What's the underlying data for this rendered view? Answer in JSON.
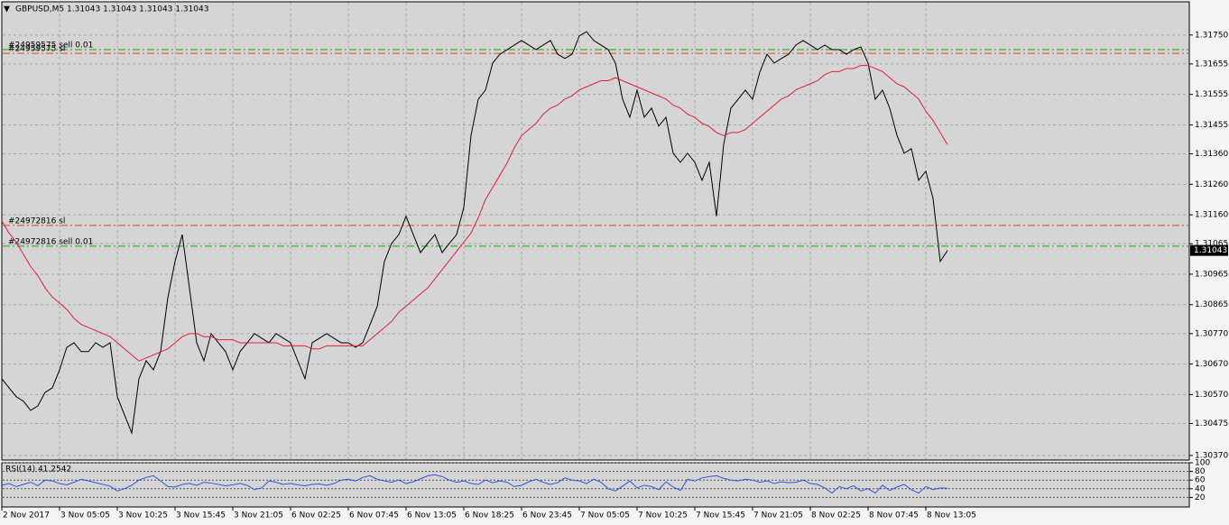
{
  "chart_data": [
    {
      "type": "line",
      "title": "GBPUSD,M5  1.31043 1.31043 1.31043 1.31043",
      "categories": [
        "2 Nov 2017",
        null,
        null,
        null,
        null,
        null,
        null,
        null,
        "3 Nov 05:05",
        null,
        null,
        null,
        null,
        null,
        null,
        null,
        "3 Nov 10:25",
        null,
        null,
        null,
        null,
        null,
        null,
        null,
        "3 Nov 15:45",
        null,
        null,
        null,
        null,
        null,
        null,
        null,
        "3 Nov 21:05",
        null,
        null,
        null,
        null,
        null,
        null,
        null,
        "6 Nov 02:25",
        null,
        null,
        null,
        null,
        null,
        null,
        null,
        "6 Nov 07:45",
        null,
        null,
        null,
        null,
        null,
        null,
        null,
        "6 Nov 13:05",
        null,
        null,
        null,
        null,
        null,
        null,
        null,
        "6 Nov 18:25",
        null,
        null,
        null,
        null,
        null,
        null,
        null,
        "6 Nov 23:45",
        null,
        null,
        null,
        null,
        null,
        null,
        null,
        "7 Nov 05:05",
        null,
        null,
        null,
        null,
        null,
        null,
        null,
        "7 Nov 10:25",
        null,
        null,
        null,
        null,
        null,
        null,
        null,
        "7 Nov 15:45",
        null,
        null,
        null,
        null,
        null,
        null,
        null,
        "7 Nov 21:05",
        null,
        null,
        null,
        null,
        null,
        null,
        null,
        "8 Nov 02:25",
        null,
        null,
        null,
        null,
        null,
        null,
        null,
        "8 Nov 07:45",
        null,
        null,
        null,
        null,
        null,
        null,
        null,
        "8 Nov 13:05",
        null,
        null,
        null
      ],
      "series": [
        {
          "color": "#000000",
          "values": [
            1.30622,
            1.30592,
            1.30563,
            1.30548,
            1.30518,
            1.30533,
            1.30577,
            1.30592,
            1.30651,
            1.30725,
            1.3074,
            1.30711,
            1.30711,
            1.3074,
            1.30725,
            1.3074,
            1.30563,
            1.30503,
            1.30444,
            1.30622,
            1.30681,
            1.30651,
            1.30711,
            1.30888,
            1.31007,
            1.31095,
            1.30918,
            1.3074,
            1.30681,
            1.3077,
            1.3074,
            1.30711,
            1.30651,
            1.30711,
            1.3074,
            1.3077,
            1.30755,
            1.3074,
            1.3077,
            1.30755,
            1.3074,
            1.30681,
            1.30622,
            1.3074,
            1.30755,
            1.3077,
            1.30755,
            1.3074,
            1.3074,
            1.30725,
            1.3074,
            1.30799,
            1.30859,
            1.31007,
            1.31066,
            1.31095,
            1.31155,
            1.31095,
            1.31036,
            1.31066,
            1.31095,
            1.31036,
            1.31066,
            1.31095,
            1.31184,
            1.31421,
            1.31539,
            1.31569,
            1.31658,
            1.31687,
            1.31702,
            1.31717,
            1.31732,
            1.31717,
            1.31702,
            1.31717,
            1.31732,
            1.31687,
            1.31673,
            1.31687,
            1.31747,
            1.31761,
            1.31732,
            1.31717,
            1.31702,
            1.31658,
            1.31539,
            1.3148,
            1.31569,
            1.3148,
            1.3151,
            1.31451,
            1.3148,
            1.31362,
            1.31332,
            1.31362,
            1.31332,
            1.31273,
            1.31332,
            1.31155,
            1.31391,
            1.3151,
            1.31539,
            1.31569,
            1.31539,
            1.31628,
            1.31687,
            1.31658,
            1.31673,
            1.31687,
            1.31717,
            1.31732,
            1.31717,
            1.31702,
            1.31717,
            1.31702,
            1.31702,
            1.31687,
            1.31702,
            1.31711,
            1.31658,
            1.31539,
            1.31569,
            1.3151,
            1.31421,
            1.31362,
            1.31377,
            1.31273,
            1.31303,
            1.31214,
            1.31007,
            1.31043
          ]
        },
        {
          "color": "#e0203a",
          "values": [
            1.3114,
            1.311,
            1.3107,
            1.3103,
            1.3099,
            1.3096,
            1.3092,
            1.3089,
            1.3087,
            1.3085,
            1.3082,
            1.308,
            1.3079,
            1.3078,
            1.3077,
            1.3076,
            1.3074,
            1.3072,
            1.307,
            1.3068,
            1.3069,
            1.307,
            1.3071,
            1.3072,
            1.3074,
            1.3076,
            1.3077,
            1.3077,
            1.3076,
            1.3076,
            1.3075,
            1.3075,
            1.3075,
            1.3074,
            1.3074,
            1.3074,
            1.3074,
            1.3074,
            1.3074,
            1.3073,
            1.3073,
            1.3073,
            1.3073,
            1.3072,
            1.3072,
            1.3073,
            1.3073,
            1.3073,
            1.3073,
            1.3073,
            1.3073,
            1.3075,
            1.3077,
            1.3079,
            1.3081,
            1.3084,
            1.3086,
            1.3088,
            1.309,
            1.3092,
            1.3095,
            1.3098,
            1.3101,
            1.3104,
            1.3107,
            1.311,
            1.3115,
            1.3121,
            1.3125,
            1.3129,
            1.3133,
            1.3138,
            1.3142,
            1.3144,
            1.3146,
            1.3149,
            1.3151,
            1.3152,
            1.3154,
            1.3155,
            1.3157,
            1.3158,
            1.3159,
            1.316,
            1.316,
            1.3161,
            1.316,
            1.3159,
            1.3158,
            1.3157,
            1.3156,
            1.3155,
            1.3154,
            1.3152,
            1.3151,
            1.3149,
            1.3148,
            1.3146,
            1.3145,
            1.3143,
            1.3142,
            1.3143,
            1.3143,
            1.3144,
            1.3146,
            1.3148,
            1.315,
            1.3152,
            1.3154,
            1.3155,
            1.3157,
            1.3158,
            1.3159,
            1.316,
            1.3162,
            1.3163,
            1.3163,
            1.3164,
            1.3164,
            1.3165,
            1.3165,
            1.3164,
            1.3163,
            1.3161,
            1.3159,
            1.3158,
            1.3156,
            1.3154,
            1.315,
            1.3147,
            1.3143,
            1.3139
          ]
        }
      ],
      "ylim": [
        1.30355,
        1.31859
      ],
      "yticks": [
        {
          "value": 1.3175,
          "label": "1.31750"
        },
        {
          "value": 1.31655,
          "label": "1.31655"
        },
        {
          "value": 1.31555,
          "label": "1.31555"
        },
        {
          "value": 1.31455,
          "label": "1.31455"
        },
        {
          "value": 1.3136,
          "label": "1.31360"
        },
        {
          "value": 1.3126,
          "label": "1.31260"
        },
        {
          "value": 1.3116,
          "label": "1.31160"
        },
        {
          "value": 1.31065,
          "label": "1.31065"
        },
        {
          "value": 1.30965,
          "label": "1.30965"
        },
        {
          "value": 1.30865,
          "label": "1.30865"
        },
        {
          "value": 1.3077,
          "label": "1.30770"
        },
        {
          "value": 1.3067,
          "label": "1.30670"
        },
        {
          "value": 1.3057,
          "label": "1.30570"
        },
        {
          "value": 1.30475,
          "label": "1.30475"
        },
        {
          "value": 1.3037,
          "label": "1.30370"
        }
      ],
      "grid": true,
      "levels": [
        {
          "label": "#24959575 sell 0.01",
          "value": 1.31702,
          "color": "#1a9a1a"
        },
        {
          "label": "#24959575 sl",
          "value": 1.3169,
          "color": "#e05020"
        },
        {
          "label": "#24972816 sl",
          "value": 1.31125,
          "color": "#e05020"
        },
        {
          "label": "#24972816 sell 0.01",
          "value": 1.31057,
          "color": "#1a9a1a"
        }
      ],
      "last_price": 1.31043
    },
    {
      "type": "line",
      "title": "RSI(14) 41.2542",
      "series": [
        {
          "color": "#3355dd",
          "values": [
            48,
            52,
            45,
            50,
            55,
            47,
            60,
            58,
            52,
            49,
            55,
            62,
            58,
            54,
            50,
            46,
            35,
            40,
            48,
            60,
            66,
            70,
            58,
            45,
            44,
            50,
            52,
            48,
            55,
            53,
            50,
            47,
            49,
            52,
            48,
            38,
            42,
            58,
            55,
            50,
            52,
            49,
            47,
            50,
            51,
            48,
            52,
            60,
            62,
            58,
            66,
            70,
            62,
            58,
            55,
            60,
            52,
            56,
            63,
            70,
            72,
            68,
            60,
            55,
            58,
            52,
            50,
            60,
            54,
            58,
            55,
            45,
            48,
            56,
            62,
            55,
            50,
            54,
            65,
            60,
            58,
            52,
            62,
            55,
            40,
            35,
            46,
            58,
            42,
            48,
            45,
            38,
            56,
            44,
            36,
            62,
            58,
            65,
            68,
            70,
            64,
            60,
            58,
            62,
            60,
            55,
            58,
            52,
            56,
            54,
            55,
            60,
            52,
            50,
            42,
            30,
            45,
            40,
            47,
            35,
            40,
            30,
            48,
            36,
            44,
            50,
            38,
            30,
            45,
            38,
            42,
            41
          ]
        }
      ],
      "ylim": [
        0,
        100
      ],
      "yticks": [
        100,
        80,
        60,
        40,
        20
      ]
    }
  ]
}
